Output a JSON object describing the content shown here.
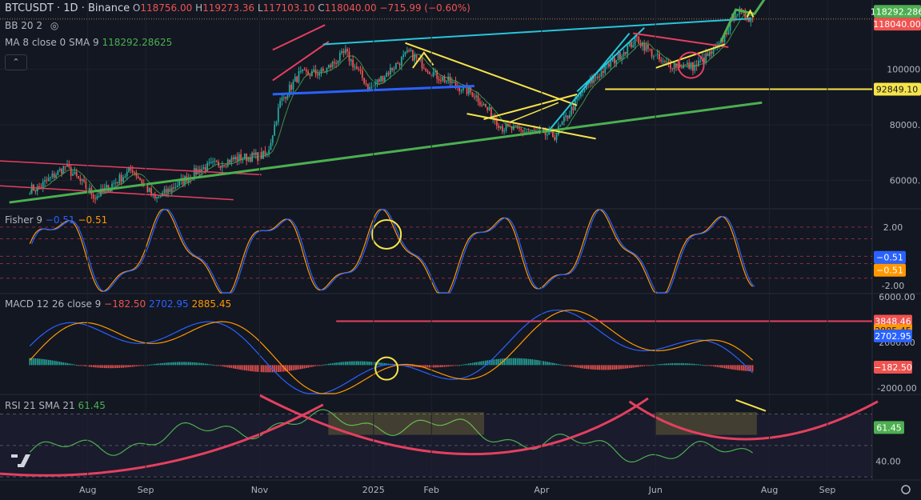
{
  "header": {
    "symbol": "BTCUSDT · 1D · Binance",
    "open_label": "O",
    "open": "118756.00",
    "high_label": "H",
    "high": "119273.36",
    "low_label": "L",
    "low": "117103.10",
    "close_label": "C",
    "close": "118040.00",
    "change": "−715.99 (−0.60%)",
    "bb": "BB 20 2",
    "ma_name": "MA 8 close 0 SMA 9",
    "ma_value": "118292.28625"
  },
  "panels": {
    "fisher": {
      "name": "Fisher 9",
      "v1": "−0.51",
      "v2": "−0.51"
    },
    "macd": {
      "name": "MACD 12 26 close 9",
      "hist": "−182.50",
      "macd": "2702.95",
      "signal": "2885.45"
    },
    "rsi": {
      "name": "RSI 21 SMA 21",
      "value": "61.45"
    }
  },
  "collapse_label": "⌃",
  "colors": {
    "bg": "#131722",
    "up": "#26a69a",
    "down": "#ef5350",
    "yellow": "#f7e44a",
    "red": "#e4405f",
    "blue": "#2962ff",
    "teal": "#26c6da",
    "green": "#4caf50",
    "ma": "#4caf50",
    "fisherA": "#2962ff",
    "fisherB": "#ff9800",
    "macd": "#2962ff",
    "signal": "#ff9800",
    "rsi": "#4caf50",
    "grid": "#2a2e39",
    "text": "#b2b5be"
  },
  "chart_data": [
    {
      "type": "candlestick",
      "title": "BTCUSDT · 1D · Binance",
      "x_labels": [
        "Aug",
        "Sep",
        "Nov",
        "2025",
        "Feb",
        "Apr",
        "Jun",
        "Aug",
        "Sep"
      ],
      "y_ticks": [
        60000,
        80000,
        100000
      ],
      "ylim": [
        50000,
        125000
      ],
      "axis_labels": [
        {
          "value": 118292.286,
          "text": "118292.286",
          "color": "#4caf50"
        },
        {
          "value": 118040.0,
          "text": "118040.00",
          "color": "#ef5350"
        },
        {
          "value": 92849.1,
          "text": "92849.10",
          "color": "#f7e44a"
        }
      ],
      "series": [
        {
          "name": "BTCUSDT",
          "approx_close_points": [
            [
              "2024-07-05",
              57000
            ],
            [
              "2024-07-20",
              65000
            ],
            [
              "2024-08-05",
              54000
            ],
            [
              "2024-08-25",
              64000
            ],
            [
              "2024-09-06",
              53000
            ],
            [
              "2024-09-30",
              64000
            ],
            [
              "2024-10-20",
              68000
            ],
            [
              "2024-11-05",
              69000
            ],
            [
              "2024-11-12",
              88000
            ],
            [
              "2024-11-22",
              98000
            ],
            [
              "2024-12-05",
              99000
            ],
            [
              "2024-12-17",
              106000
            ],
            [
              "2024-12-30",
              93000
            ],
            [
              "2025-01-20",
              106000
            ],
            [
              "2025-02-03",
              98000
            ],
            [
              "2025-02-24",
              91000
            ],
            [
              "2025-03-11",
              79000
            ],
            [
              "2025-04-08",
              76000
            ],
            [
              "2025-04-25",
              94000
            ],
            [
              "2025-05-22",
              111000
            ],
            [
              "2025-06-05",
              102000
            ],
            [
              "2025-06-22",
              101000
            ],
            [
              "2025-07-05",
              108000
            ],
            [
              "2025-07-14",
              121000
            ],
            [
              "2025-07-23",
              118040
            ]
          ]
        }
      ],
      "annotations": [
        "manual trendlines (red, blue, yellow, teal, green)",
        "red circle near June",
        "green arrow up",
        "horizontal line 92849.10"
      ]
    },
    {
      "type": "line",
      "title": "Fisher 9",
      "y_ticks": [
        -2.0,
        0.0,
        2.0
      ],
      "ylim": [
        -2.5,
        3.2
      ],
      "axis_labels": [
        {
          "value": -0.51,
          "text": "−0.51",
          "color": "#2962ff"
        },
        {
          "value": -0.51,
          "text": "−0.51",
          "color": "#ff9800"
        }
      ],
      "series": [
        {
          "name": "Fisher",
          "last": -0.51
        },
        {
          "name": "Trigger",
          "last": -0.51
        }
      ]
    },
    {
      "type": "bar",
      "title": "MACD 12 26 close 9",
      "y_ticks": [
        6000,
        2000,
        -2000
      ],
      "ylim": [
        -2500,
        6200
      ],
      "axis_labels": [
        {
          "value": 3848.46,
          "text": "3848.46",
          "color": "#ef5350"
        },
        {
          "value": 2885.45,
          "text": "2885.45",
          "color": "#ff9800"
        },
        {
          "value": 2702.95,
          "text": "2702.95",
          "color": "#2962ff"
        },
        {
          "value": -182.5,
          "text": "−182.50",
          "color": "#ef5350"
        }
      ],
      "series": [
        {
          "name": "Histogram",
          "last": -182.5
        },
        {
          "name": "MACD",
          "last": 2702.95
        },
        {
          "name": "Signal",
          "last": 2885.45
        }
      ]
    },
    {
      "type": "line",
      "title": "RSI 21 SMA 21",
      "y_ticks": [
        40
      ],
      "ylim": [
        28,
        82
      ],
      "axis_labels": [
        {
          "value": 61.45,
          "text": "61.45",
          "color": "#4caf50"
        }
      ],
      "series": [
        {
          "name": "RSI",
          "last": 61.45
        }
      ]
    }
  ]
}
